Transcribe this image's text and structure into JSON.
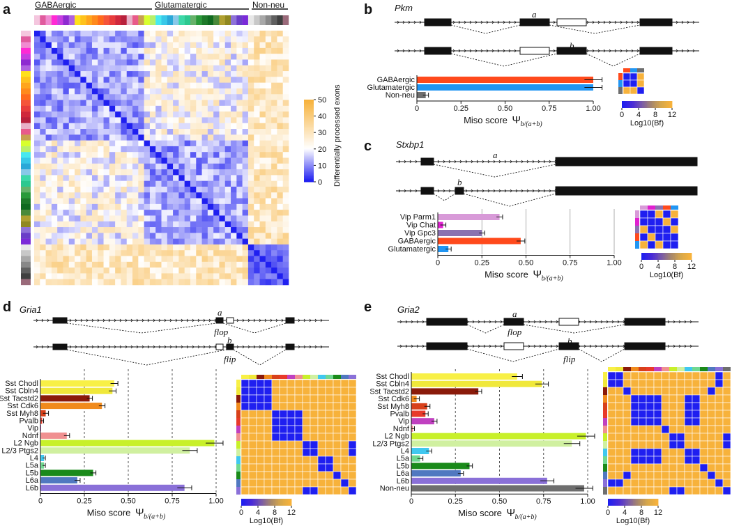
{
  "colors": {
    "high": "#f7b23b",
    "mid": "#ffffff",
    "low": "#1f1ff0",
    "gaba": "#ff4a1c",
    "glut": "#2196f3",
    "nonneu": "#6e6e6e"
  },
  "panel_a": {
    "label": "a",
    "group_labels": [
      "GABAergic",
      "Glutamatergic",
      "Non-neu"
    ],
    "colorbar_title": "Differentially processed exons",
    "colorbar_ticks": [
      "50",
      "40",
      "30",
      "20",
      "10",
      "0"
    ],
    "cell_type_colors": [
      "#f4c6de",
      "#e05b9e",
      "#f08bd1",
      "#ff2ad4",
      "#c73fe0",
      "#8e2bd1",
      "#b062e0",
      "#ffe01c",
      "#ffc21c",
      "#ffa51c",
      "#ff8a1c",
      "#ff6a1c",
      "#f5543a",
      "#e83c3c",
      "#d0283c",
      "#b8203c",
      "#e8b0c8",
      "#e85a8a",
      "#c8a050",
      "#d8ff2e",
      "#b8f06a",
      "#48e8f0",
      "#38c8e8",
      "#2aa8d8",
      "#88c8e8",
      "#3cd8a8",
      "#2cc890",
      "#66b26a",
      "#2a9a3a",
      "#1e7a2a",
      "#106a20",
      "#4a8a3a",
      "#b0a030",
      "#908820",
      "#8e72d8",
      "#6a3ec8",
      "#7a2ad8",
      "#e8e8e8",
      "#c8c8c8",
      "#a8a8a8",
      "#888888",
      "#606060",
      "#404040",
      "#9a6a7a"
    ]
  },
  "panel_b": {
    "label": "b",
    "gene": "Pkm",
    "isoform_a": "a",
    "isoform_b": "b",
    "bar_labels": [
      "GABAergic",
      "Glutamatergic",
      "Non-neu"
    ],
    "bar_values": [
      1.0,
      1.0,
      0.05
    ],
    "axis_ticks": [
      "0",
      "0.25",
      "0.50",
      "0.75",
      "1.00"
    ],
    "axis_title": "Miso score",
    "axis_symbol": "Ψ",
    "axis_subscript": "b/(a+b)",
    "bf_ticks": [
      "0",
      "4",
      "8",
      "12"
    ],
    "bf_label": "Log10(Bf)"
  },
  "panel_c": {
    "label": "c",
    "gene": "Stxbp1",
    "isoform_a": "a",
    "isoform_b": "b",
    "bar_labels": [
      "Vip Parm1",
      "Vip Chat",
      "Vip Gpc3",
      "GABAergic",
      "Glutamatergic"
    ],
    "bar_values": [
      0.35,
      0.03,
      0.25,
      0.47,
      0.06
    ],
    "axis_ticks": [
      "0",
      "0.25",
      "0.50",
      "0.75",
      "1.00"
    ],
    "axis_title": "Miso score",
    "axis_symbol": "Ψ",
    "axis_subscript": "b/(a+b)",
    "bf_ticks": [
      "0",
      "4",
      "8",
      "12"
    ],
    "bf_label": "Log10(Bf)"
  },
  "panel_d": {
    "label": "d",
    "gene": "Gria1",
    "isoform_a": "a",
    "isoform_b": "b",
    "name_a": "flop",
    "name_b": "flip",
    "bar_labels": [
      "Sst Chodl",
      "Sst Cbln4",
      "Sst Tacstd2",
      "Sst Cdk6",
      "Sst Myh8",
      "Pvalb",
      "Vip",
      "Ndnf",
      "L2 Ngb",
      "L2/3 Ptgs2",
      "L4",
      "L5a",
      "L5b",
      "L6a",
      "L6b"
    ],
    "bar_values": [
      0.42,
      0.41,
      0.28,
      0.35,
      0.03,
      0.01,
      0.0,
      0.15,
      0.99,
      0.85,
      0.02,
      0.02,
      0.3,
      0.21,
      0.82
    ],
    "axis_ticks": [
      "0",
      "0.25",
      "0.50",
      "0.75",
      "1.00"
    ],
    "axis_title": "Miso score",
    "axis_symbol": "Ψ",
    "axis_subscript": "b/(a+b)",
    "bf_ticks": [
      "0",
      "4",
      "8",
      "12"
    ],
    "bf_label": "Log10(Bf)"
  },
  "panel_e": {
    "label": "e",
    "gene": "Gria2",
    "isoform_a": "a",
    "isoform_b": "b",
    "name_a": "flop",
    "name_b": "flip",
    "bar_labels": [
      "Sst Chodl",
      "Sst Cbln4",
      "Sst Tacstd2",
      "Sst Cdk6",
      "Sst Myh8",
      "Pvalb",
      "Vip",
      "Ndnf",
      "L2 Ngb",
      "L2/3 Ptgs2",
      "L4",
      "L5a",
      "L5b",
      "L6a",
      "L6b",
      "Non-neu"
    ],
    "bar_values": [
      0.6,
      0.74,
      0.38,
      0.03,
      0.09,
      0.08,
      0.13,
      0.01,
      0.99,
      0.91,
      0.1,
      0.05,
      0.33,
      0.28,
      0.77,
      0.98
    ],
    "axis_ticks": [
      "0",
      "0.25",
      "0.50",
      "0.75",
      "1.00"
    ],
    "axis_title": "Miso score",
    "axis_symbol": "Ψ",
    "axis_subscript": "b/(a+b)",
    "bf_ticks": [
      "0",
      "4",
      "8",
      "12"
    ],
    "bf_label": "Log10(Bf)"
  }
}
